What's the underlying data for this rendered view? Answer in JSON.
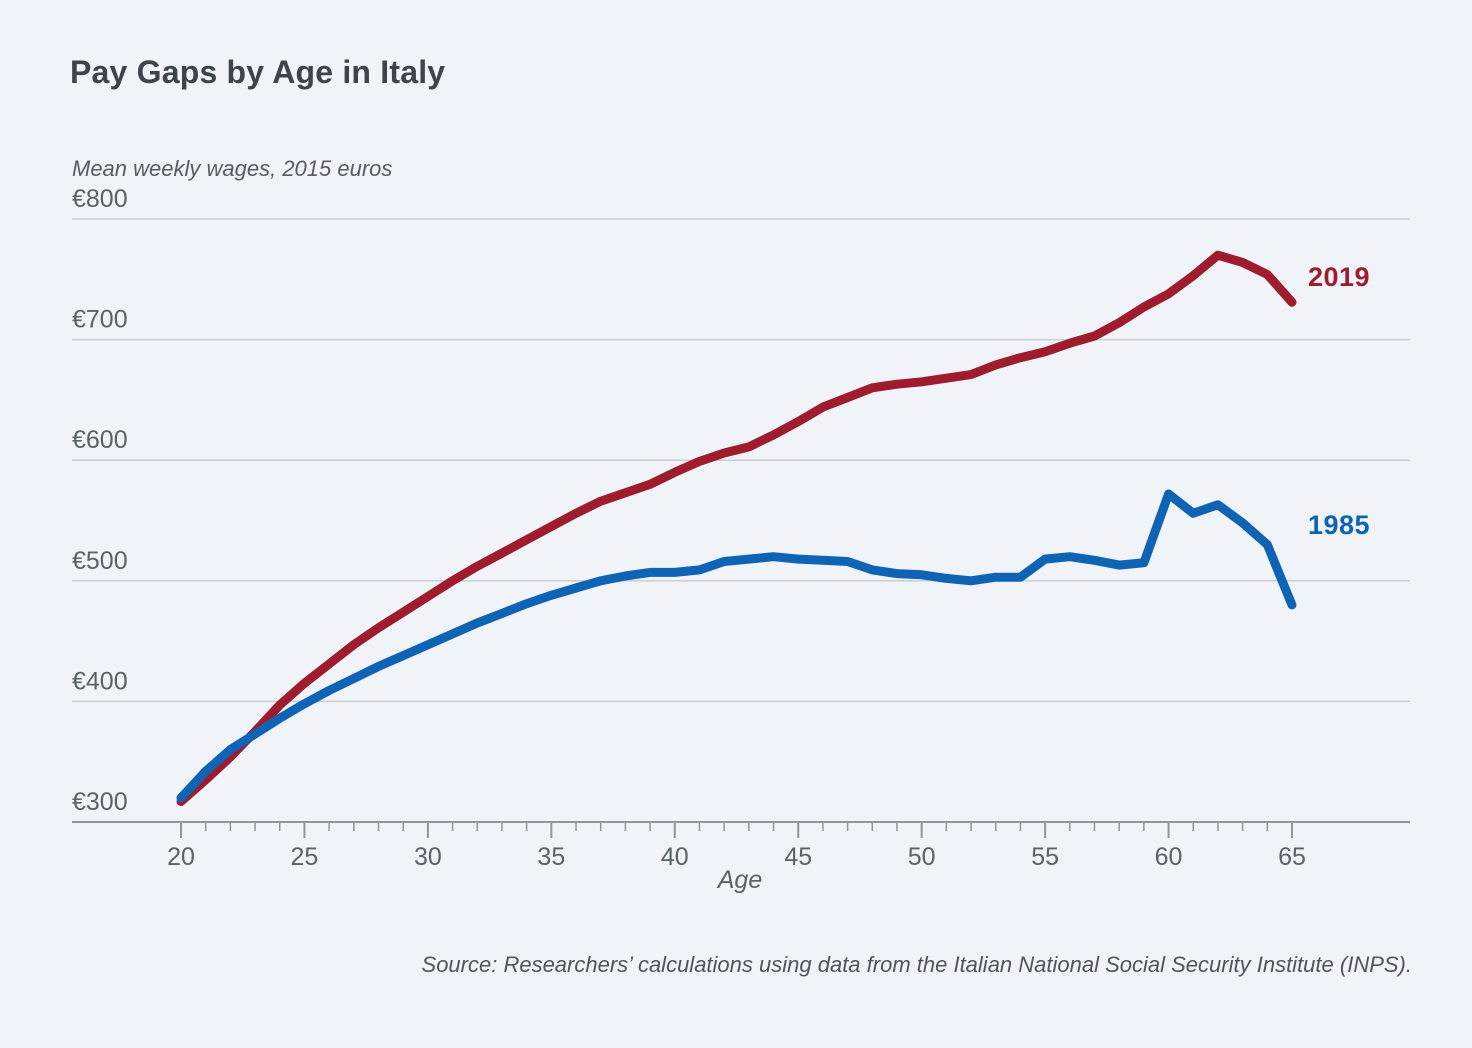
{
  "figure": {
    "background": "#f0f4f8",
    "source": "Source: Researchers’ calculations using data from the Italian National Social Security Institute (INPS)."
  },
  "chart_data": {
    "type": "line",
    "title": "Pay Gaps by Age in Italy",
    "subtitle": "Mean weekly wages, 2015 euros",
    "xlabel": "Age",
    "ylabel": "Mean weekly wages, 2015 euros",
    "xlim": [
      20,
      65
    ],
    "ylim": [
      300,
      800
    ],
    "grid": "horizontal",
    "legend_position": "inline-end-labels",
    "y_ticks": [
      {
        "value": 800,
        "label": "€800"
      },
      {
        "value": 700,
        "label": "€700"
      },
      {
        "value": 600,
        "label": "€600"
      },
      {
        "value": 500,
        "label": "€500"
      },
      {
        "value": 400,
        "label": "€400"
      },
      {
        "value": 300,
        "label": "€300"
      }
    ],
    "x_major_ticks": [
      20,
      25,
      30,
      35,
      40,
      45,
      50,
      55,
      60,
      65
    ],
    "x_minor_tick_step": 1,
    "x": [
      20,
      21,
      22,
      23,
      24,
      25,
      26,
      27,
      28,
      29,
      30,
      31,
      32,
      33,
      34,
      35,
      36,
      37,
      38,
      39,
      40,
      41,
      42,
      43,
      44,
      45,
      46,
      47,
      48,
      49,
      50,
      51,
      52,
      53,
      54,
      55,
      56,
      57,
      58,
      59,
      60,
      61,
      62,
      63,
      64,
      65
    ],
    "series": [
      {
        "name": "2019",
        "color": "#9e1c2e",
        "values": [
          317,
          335,
          354,
          375,
          397,
          415,
          431,
          447,
          461,
          474,
          487,
          500,
          512,
          523,
          534,
          545,
          556,
          566,
          573,
          580,
          590,
          599,
          606,
          611,
          621,
          632,
          644,
          652,
          660,
          663,
          665,
          668,
          671,
          679,
          685,
          690,
          697,
          703,
          714,
          727,
          738,
          753,
          770,
          764,
          754,
          731
        ]
      },
      {
        "name": "1985",
        "color": "#0e63b4",
        "values": [
          320,
          342,
          360,
          373,
          386,
          398,
          409,
          419,
          429,
          438,
          447,
          456,
          465,
          473,
          481,
          488,
          494,
          500,
          504,
          507,
          507,
          509,
          516,
          518,
          520,
          518,
          517,
          516,
          509,
          506,
          505,
          502,
          500,
          503,
          503,
          518,
          520,
          517,
          513,
          515,
          572,
          556,
          563,
          548,
          530,
          480
        ]
      }
    ],
    "axis_colors": {
      "gridline": "#c9ced4",
      "axis_line": "#8f969c",
      "tick": "#8f969c",
      "tick_label": "#5a6167"
    }
  }
}
